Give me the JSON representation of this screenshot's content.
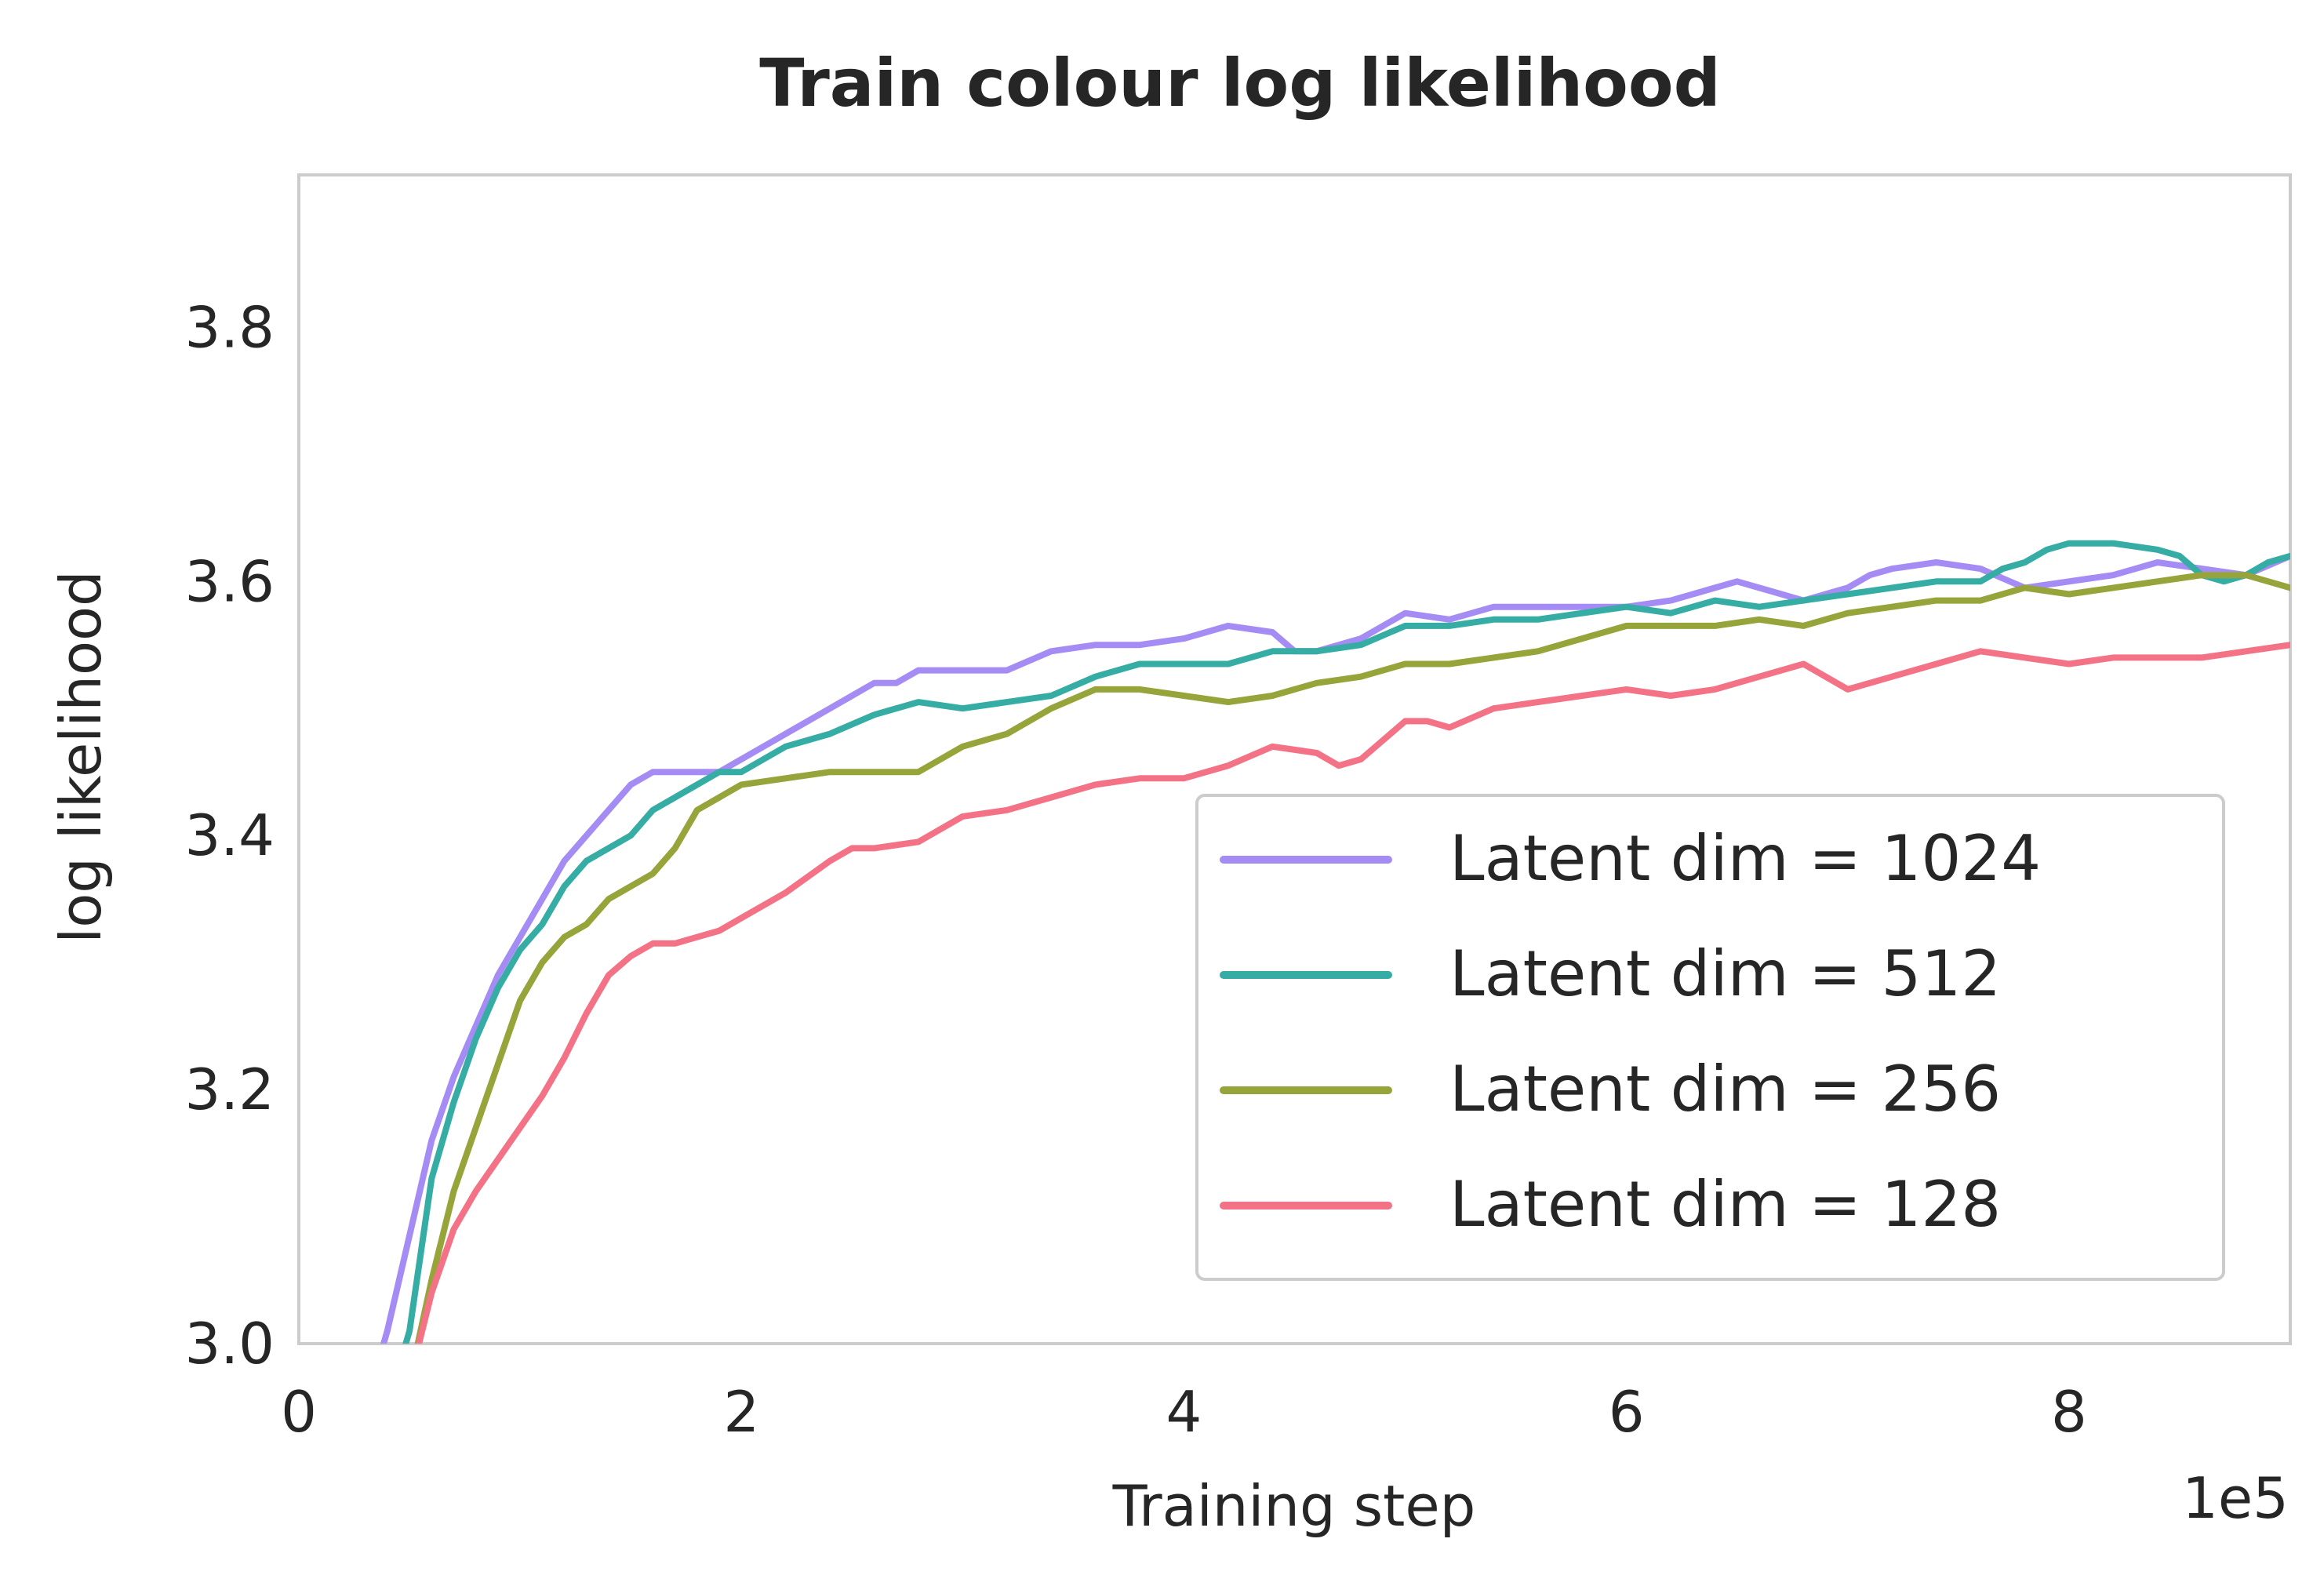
{
  "chart_data": {
    "type": "line",
    "title": "Train colour log likelihood",
    "xlabel": "Training step",
    "ylabel": "log likelihood",
    "x_offset_label": "1e5",
    "xlim": [
      0,
      900000
    ],
    "ylim": [
      3.0,
      3.92
    ],
    "x_ticks": [
      0,
      200000,
      400000,
      600000,
      800000
    ],
    "x_tick_labels": [
      "0",
      "2",
      "4",
      "6",
      "8"
    ],
    "y_ticks": [
      3.0,
      3.2,
      3.4,
      3.6,
      3.8
    ],
    "y_tick_labels": [
      "3.0",
      "3.2",
      "3.4",
      "3.6",
      "3.8"
    ],
    "grid": false,
    "legend_position": "lower-right",
    "series": [
      {
        "name": "Latent dim = 1024",
        "color": "#a48cf4",
        "x": [
          30000,
          40000,
          60000,
          70000,
          80000,
          90000,
          100000,
          110000,
          120000,
          130000,
          140000,
          150000,
          160000,
          170000,
          180000,
          190000,
          200000,
          210000,
          220000,
          230000,
          240000,
          250000,
          260000,
          270000,
          280000,
          290000,
          300000,
          320000,
          340000,
          360000,
          380000,
          400000,
          420000,
          440000,
          450000,
          460000,
          480000,
          500000,
          520000,
          540000,
          560000,
          580000,
          600000,
          620000,
          640000,
          650000,
          660000,
          680000,
          700000,
          710000,
          720000,
          740000,
          760000,
          780000,
          800000,
          820000,
          840000,
          860000,
          880000,
          900000
        ],
        "values": [
          2.95,
          3.01,
          3.16,
          3.21,
          3.25,
          3.29,
          3.32,
          3.35,
          3.38,
          3.4,
          3.42,
          3.44,
          3.45,
          3.45,
          3.45,
          3.45,
          3.46,
          3.47,
          3.48,
          3.49,
          3.5,
          3.51,
          3.52,
          3.52,
          3.53,
          3.53,
          3.53,
          3.53,
          3.545,
          3.55,
          3.55,
          3.555,
          3.565,
          3.56,
          3.545,
          3.545,
          3.555,
          3.575,
          3.57,
          3.58,
          3.58,
          3.58,
          3.58,
          3.585,
          3.595,
          3.6,
          3.595,
          3.585,
          3.595,
          3.605,
          3.61,
          3.615,
          3.61,
          3.595,
          3.6,
          3.605,
          3.615,
          3.61,
          3.605,
          3.62
        ]
      },
      {
        "name": "Latent dim = 512",
        "color": "#36ada4",
        "x": [
          40000,
          50000,
          60000,
          70000,
          80000,
          90000,
          100000,
          110000,
          120000,
          130000,
          140000,
          150000,
          160000,
          170000,
          180000,
          190000,
          200000,
          220000,
          240000,
          260000,
          280000,
          300000,
          320000,
          340000,
          360000,
          380000,
          400000,
          420000,
          440000,
          460000,
          480000,
          500000,
          520000,
          540000,
          560000,
          580000,
          600000,
          620000,
          640000,
          660000,
          680000,
          700000,
          720000,
          740000,
          760000,
          770000,
          780000,
          790000,
          800000,
          820000,
          840000,
          850000,
          860000,
          870000,
          880000,
          890000,
          900000
        ],
        "values": [
          2.95,
          3.01,
          3.13,
          3.19,
          3.24,
          3.28,
          3.31,
          3.33,
          3.36,
          3.38,
          3.39,
          3.4,
          3.42,
          3.43,
          3.44,
          3.45,
          3.45,
          3.47,
          3.48,
          3.495,
          3.505,
          3.5,
          3.505,
          3.51,
          3.525,
          3.535,
          3.535,
          3.535,
          3.545,
          3.545,
          3.55,
          3.565,
          3.565,
          3.57,
          3.57,
          3.575,
          3.58,
          3.575,
          3.585,
          3.58,
          3.585,
          3.59,
          3.595,
          3.6,
          3.6,
          3.61,
          3.615,
          3.625,
          3.63,
          3.63,
          3.625,
          3.62,
          3.605,
          3.6,
          3.605,
          3.615,
          3.62
        ]
      },
      {
        "name": "Latent dim = 256",
        "color": "#96a43a",
        "x": [
          50000,
          60000,
          70000,
          80000,
          90000,
          100000,
          110000,
          120000,
          130000,
          140000,
          150000,
          160000,
          170000,
          180000,
          190000,
          200000,
          220000,
          240000,
          260000,
          280000,
          300000,
          320000,
          340000,
          360000,
          380000,
          400000,
          420000,
          440000,
          460000,
          480000,
          500000,
          520000,
          540000,
          560000,
          580000,
          600000,
          620000,
          640000,
          660000,
          680000,
          700000,
          720000,
          740000,
          760000,
          780000,
          800000,
          820000,
          840000,
          860000,
          880000,
          900000
        ],
        "values": [
          2.97,
          3.05,
          3.12,
          3.17,
          3.22,
          3.27,
          3.3,
          3.32,
          3.33,
          3.35,
          3.36,
          3.37,
          3.39,
          3.42,
          3.43,
          3.44,
          3.445,
          3.45,
          3.45,
          3.45,
          3.47,
          3.48,
          3.5,
          3.515,
          3.515,
          3.51,
          3.505,
          3.51,
          3.52,
          3.525,
          3.535,
          3.535,
          3.54,
          3.545,
          3.555,
          3.565,
          3.565,
          3.565,
          3.57,
          3.565,
          3.575,
          3.58,
          3.585,
          3.585,
          3.595,
          3.59,
          3.595,
          3.6,
          3.605,
          3.605,
          3.595
        ]
      },
      {
        "name": "Latent dim = 128",
        "color": "#f47286",
        "x": [
          50000,
          60000,
          70000,
          80000,
          90000,
          100000,
          110000,
          120000,
          130000,
          140000,
          150000,
          160000,
          170000,
          180000,
          190000,
          200000,
          220000,
          240000,
          250000,
          260000,
          280000,
          300000,
          320000,
          340000,
          360000,
          380000,
          400000,
          420000,
          440000,
          460000,
          470000,
          480000,
          500000,
          510000,
          520000,
          540000,
          560000,
          580000,
          600000,
          620000,
          640000,
          660000,
          680000,
          700000,
          720000,
          740000,
          760000,
          780000,
          800000,
          820000,
          840000,
          860000,
          880000,
          900000
        ],
        "values": [
          2.97,
          3.04,
          3.09,
          3.12,
          3.145,
          3.17,
          3.195,
          3.225,
          3.26,
          3.29,
          3.305,
          3.315,
          3.315,
          3.32,
          3.325,
          3.335,
          3.355,
          3.38,
          3.39,
          3.39,
          3.395,
          3.415,
          3.42,
          3.43,
          3.44,
          3.445,
          3.445,
          3.455,
          3.47,
          3.465,
          3.455,
          3.46,
          3.49,
          3.49,
          3.485,
          3.5,
          3.505,
          3.51,
          3.515,
          3.51,
          3.515,
          3.525,
          3.535,
          3.515,
          3.525,
          3.535,
          3.545,
          3.54,
          3.535,
          3.54,
          3.54,
          3.54,
          3.545,
          3.55
        ]
      }
    ]
  }
}
